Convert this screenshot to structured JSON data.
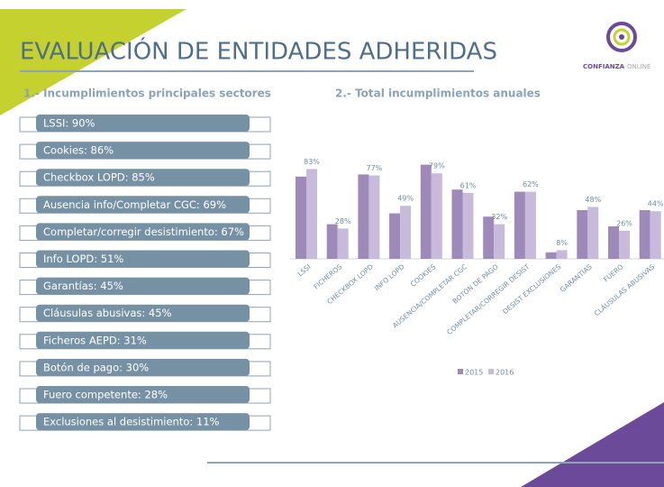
{
  "title": "EVALUACIÓN DE ENTIDADES ADHERIDAS",
  "logo": {
    "brand": "CONFIANZA",
    "suffix": "ONLINE"
  },
  "list": {
    "heading": "1.- Incumplimientos principales sectores",
    "items": [
      "LSSI: 90%",
      "Cookies: 86%",
      "Checkbox LOPD: 85%",
      "Ausencia info/Completar CGC: 69%",
      "Completar/corregir desistimiento: 67%",
      "Info LOPD: 51%",
      "Garantías: 45%",
      "Cláusulas abusivas: 45%",
      "Ficheros AEPD: 31%",
      "Botón de pago: 30%",
      "Fuero competente: 28%",
      "Exclusiones al desistimiento: 11%"
    ]
  },
  "chart_data": {
    "type": "bar",
    "title": "2.- Total incumplimientos anuales",
    "categories": [
      "LSSI",
      "FICHEROS",
      "CHECKBOX LOPD",
      "INFO LOPD",
      "COOKIES",
      "AUSENCIA/COMPLETAR CGC",
      "BOTÓN DE PAGO",
      "COMPLETAR/CORREGIR DESIST",
      "DESIST EXCLUSIONES",
      "GARANTÍAS",
      "FUERO",
      "CLÁUSULAS ABUSIVAS"
    ],
    "series": [
      {
        "name": "2015",
        "color": "#9d8ab8",
        "values": [
          76,
          32,
          78,
          42,
          87,
          64,
          39,
          62,
          6,
          45,
          30,
          45
        ]
      },
      {
        "name": "2016",
        "color": "#c8badb",
        "values": [
          83,
          28,
          77,
          49,
          79,
          61,
          32,
          62,
          8,
          48,
          26,
          44
        ],
        "value_labels": [
          "83%",
          "28%",
          "77%",
          "49%",
          "79%",
          "61%",
          "32%",
          "62%",
          "8%",
          "48%",
          "26%",
          "44%"
        ]
      }
    ]
  }
}
